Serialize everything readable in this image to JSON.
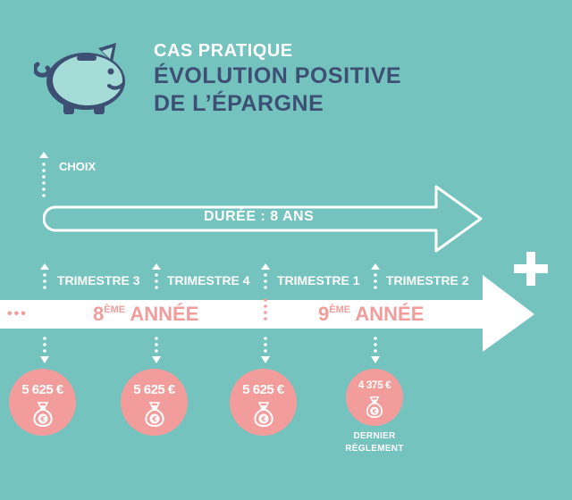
{
  "header": {
    "line1": "CAS PRATIQUE",
    "line2": "ÉVOLUTION POSITIVE",
    "line3": "DE L’ÉPARGNE"
  },
  "choice_label": "CHOIX",
  "duration_label": "DURÉE : 8 ANS",
  "plus_sign": "+",
  "ellipsis": "•••",
  "quarters": [
    "TRIMESTRE 3",
    "TRIMESTRE 4",
    "TRIMESTRE 1",
    "TRIMESTRE 2"
  ],
  "years": [
    {
      "number": "8",
      "suffix": "ÈME",
      "word": "ANNÉE"
    },
    {
      "number": "9",
      "suffix": "ÈME",
      "word": "ANNÉE"
    }
  ],
  "payments": [
    {
      "amount": "5 625 €"
    },
    {
      "amount": "5 625 €"
    },
    {
      "amount": "5 625 €"
    },
    {
      "amount": "4 375 €"
    }
  ],
  "last_payment_note": [
    "DERNIER",
    "RÈGLEMENT"
  ],
  "icons": {
    "logo": "piggy-bank-icon",
    "money": "money-bag-euro-icon",
    "arrow": "arrow-up-icon"
  },
  "colors": {
    "background": "#74c3bf",
    "navy": "#3d4f73",
    "pink": "#f29d9b",
    "piggy": "#a6dcd8",
    "white": "#ffffff"
  }
}
